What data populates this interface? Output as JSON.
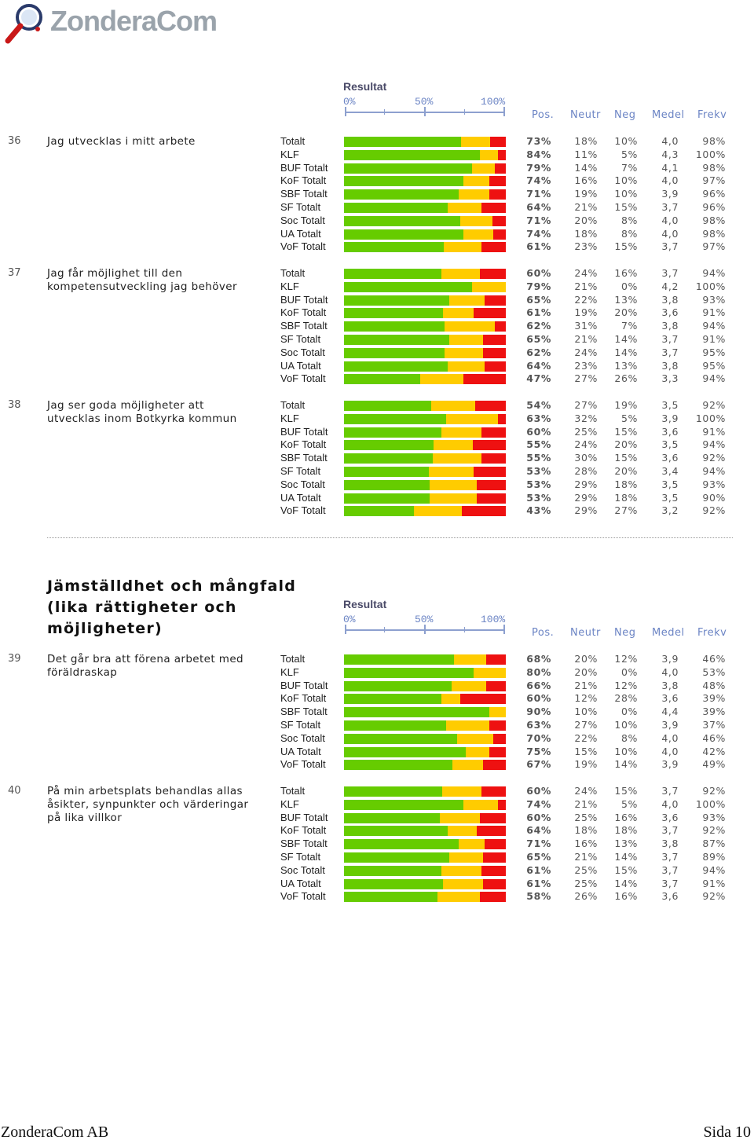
{
  "brand": {
    "name": "ZonderaCom",
    "icon": "magnifier-logo-icon"
  },
  "colors": {
    "positive": "#66cc00",
    "neutral": "#ffcc00",
    "negative": "#ee1111",
    "header_blue": "#6b84c4"
  },
  "scale_header": {
    "result_label": "Resultat",
    "ticks": [
      "0%",
      "50%",
      "100%"
    ],
    "columns": [
      "Pos.",
      "Neutr",
      "Neg",
      "Medel",
      "Frekv"
    ]
  },
  "section": {
    "title_lines": [
      "Jämställdhet och mångfald",
      "(lika rättigheter och",
      "möjligheter)"
    ]
  },
  "questions": [
    {
      "num": "36",
      "text": "Jag utvecklas i mitt arbete",
      "rows": [
        {
          "label": "Totalt",
          "pos": "73%",
          "neu": "18%",
          "neg": "10%",
          "medel": "4,0",
          "frekv": "98%"
        },
        {
          "label": "KLF",
          "pos": "84%",
          "neu": "11%",
          "neg": "5%",
          "medel": "4,3",
          "frekv": "100%"
        },
        {
          "label": "BUF Totalt",
          "pos": "79%",
          "neu": "14%",
          "neg": "7%",
          "medel": "4,1",
          "frekv": "98%"
        },
        {
          "label": "KoF Totalt",
          "pos": "74%",
          "neu": "16%",
          "neg": "10%",
          "medel": "4,0",
          "frekv": "97%"
        },
        {
          "label": "SBF Totalt",
          "pos": "71%",
          "neu": "19%",
          "neg": "10%",
          "medel": "3,9",
          "frekv": "96%"
        },
        {
          "label": "SF Totalt",
          "pos": "64%",
          "neu": "21%",
          "neg": "15%",
          "medel": "3,7",
          "frekv": "96%"
        },
        {
          "label": "Soc Totalt",
          "pos": "71%",
          "neu": "20%",
          "neg": "8%",
          "medel": "4,0",
          "frekv": "98%"
        },
        {
          "label": "UA Totalt",
          "pos": "74%",
          "neu": "18%",
          "neg": "8%",
          "medel": "4,0",
          "frekv": "98%"
        },
        {
          "label": "VoF Totalt",
          "pos": "61%",
          "neu": "23%",
          "neg": "15%",
          "medel": "3,7",
          "frekv": "97%"
        }
      ]
    },
    {
      "num": "37",
      "text": "Jag får möjlighet till den kompetensutveckling jag behöver",
      "rows": [
        {
          "label": "Totalt",
          "pos": "60%",
          "neu": "24%",
          "neg": "16%",
          "medel": "3,7",
          "frekv": "94%"
        },
        {
          "label": "KLF",
          "pos": "79%",
          "neu": "21%",
          "neg": "0%",
          "medel": "4,2",
          "frekv": "100%"
        },
        {
          "label": "BUF Totalt",
          "pos": "65%",
          "neu": "22%",
          "neg": "13%",
          "medel": "3,8",
          "frekv": "93%"
        },
        {
          "label": "KoF Totalt",
          "pos": "61%",
          "neu": "19%",
          "neg": "20%",
          "medel": "3,6",
          "frekv": "91%"
        },
        {
          "label": "SBF Totalt",
          "pos": "62%",
          "neu": "31%",
          "neg": "7%",
          "medel": "3,8",
          "frekv": "94%"
        },
        {
          "label": "SF Totalt",
          "pos": "65%",
          "neu": "21%",
          "neg": "14%",
          "medel": "3,7",
          "frekv": "91%"
        },
        {
          "label": "Soc Totalt",
          "pos": "62%",
          "neu": "24%",
          "neg": "14%",
          "medel": "3,7",
          "frekv": "95%"
        },
        {
          "label": "UA Totalt",
          "pos": "64%",
          "neu": "23%",
          "neg": "13%",
          "medel": "3,8",
          "frekv": "95%"
        },
        {
          "label": "VoF Totalt",
          "pos": "47%",
          "neu": "27%",
          "neg": "26%",
          "medel": "3,3",
          "frekv": "94%"
        }
      ]
    },
    {
      "num": "38",
      "text": "Jag ser goda möjligheter att utvecklas inom Botkyrka kommun",
      "rows": [
        {
          "label": "Totalt",
          "pos": "54%",
          "neu": "27%",
          "neg": "19%",
          "medel": "3,5",
          "frekv": "92%"
        },
        {
          "label": "KLF",
          "pos": "63%",
          "neu": "32%",
          "neg": "5%",
          "medel": "3,9",
          "frekv": "100%"
        },
        {
          "label": "BUF Totalt",
          "pos": "60%",
          "neu": "25%",
          "neg": "15%",
          "medel": "3,6",
          "frekv": "91%"
        },
        {
          "label": "KoF Totalt",
          "pos": "55%",
          "neu": "24%",
          "neg": "20%",
          "medel": "3,5",
          "frekv": "94%"
        },
        {
          "label": "SBF Totalt",
          "pos": "55%",
          "neu": "30%",
          "neg": "15%",
          "medel": "3,6",
          "frekv": "92%"
        },
        {
          "label": "SF Totalt",
          "pos": "53%",
          "neu": "28%",
          "neg": "20%",
          "medel": "3,4",
          "frekv": "94%"
        },
        {
          "label": "Soc Totalt",
          "pos": "53%",
          "neu": "29%",
          "neg": "18%",
          "medel": "3,5",
          "frekv": "93%"
        },
        {
          "label": "UA Totalt",
          "pos": "53%",
          "neu": "29%",
          "neg": "18%",
          "medel": "3,5",
          "frekv": "90%"
        },
        {
          "label": "VoF Totalt",
          "pos": "43%",
          "neu": "29%",
          "neg": "27%",
          "medel": "3,2",
          "frekv": "92%"
        }
      ]
    },
    {
      "num": "39",
      "text": "Det går bra att förena arbetet med föräldraskap",
      "rows": [
        {
          "label": "Totalt",
          "pos": "68%",
          "neu": "20%",
          "neg": "12%",
          "medel": "3,9",
          "frekv": "46%"
        },
        {
          "label": "KLF",
          "pos": "80%",
          "neu": "20%",
          "neg": "0%",
          "medel": "4,0",
          "frekv": "53%"
        },
        {
          "label": "BUF Totalt",
          "pos": "66%",
          "neu": "21%",
          "neg": "12%",
          "medel": "3,8",
          "frekv": "48%"
        },
        {
          "label": "KoF Totalt",
          "pos": "60%",
          "neu": "12%",
          "neg": "28%",
          "medel": "3,6",
          "frekv": "39%"
        },
        {
          "label": "SBF Totalt",
          "pos": "90%",
          "neu": "10%",
          "neg": "0%",
          "medel": "4,4",
          "frekv": "39%"
        },
        {
          "label": "SF Totalt",
          "pos": "63%",
          "neu": "27%",
          "neg": "10%",
          "medel": "3,9",
          "frekv": "37%"
        },
        {
          "label": "Soc Totalt",
          "pos": "70%",
          "neu": "22%",
          "neg": "8%",
          "medel": "4,0",
          "frekv": "46%"
        },
        {
          "label": "UA Totalt",
          "pos": "75%",
          "neu": "15%",
          "neg": "10%",
          "medel": "4,0",
          "frekv": "42%"
        },
        {
          "label": "VoF Totalt",
          "pos": "67%",
          "neu": "19%",
          "neg": "14%",
          "medel": "3,9",
          "frekv": "49%"
        }
      ]
    },
    {
      "num": "40",
      "text": "På min arbetsplats behandlas allas åsikter, synpunkter och värderingar på lika villkor",
      "rows": [
        {
          "label": "Totalt",
          "pos": "60%",
          "neu": "24%",
          "neg": "15%",
          "medel": "3,7",
          "frekv": "92%"
        },
        {
          "label": "KLF",
          "pos": "74%",
          "neu": "21%",
          "neg": "5%",
          "medel": "4,0",
          "frekv": "100%"
        },
        {
          "label": "BUF Totalt",
          "pos": "60%",
          "neu": "25%",
          "neg": "16%",
          "medel": "3,6",
          "frekv": "93%"
        },
        {
          "label": "KoF Totalt",
          "pos": "64%",
          "neu": "18%",
          "neg": "18%",
          "medel": "3,7",
          "frekv": "92%"
        },
        {
          "label": "SBF Totalt",
          "pos": "71%",
          "neu": "16%",
          "neg": "13%",
          "medel": "3,8",
          "frekv": "87%"
        },
        {
          "label": "SF Totalt",
          "pos": "65%",
          "neu": "21%",
          "neg": "14%",
          "medel": "3,7",
          "frekv": "89%"
        },
        {
          "label": "Soc Totalt",
          "pos": "61%",
          "neu": "25%",
          "neg": "15%",
          "medel": "3,7",
          "frekv": "94%"
        },
        {
          "label": "UA Totalt",
          "pos": "61%",
          "neu": "25%",
          "neg": "14%",
          "medel": "3,7",
          "frekv": "91%"
        },
        {
          "label": "VoF Totalt",
          "pos": "58%",
          "neu": "26%",
          "neg": "16%",
          "medel": "3,6",
          "frekv": "92%"
        }
      ]
    }
  ],
  "footer": {
    "left": "ZonderaCom AB",
    "right": "Sida 10"
  }
}
